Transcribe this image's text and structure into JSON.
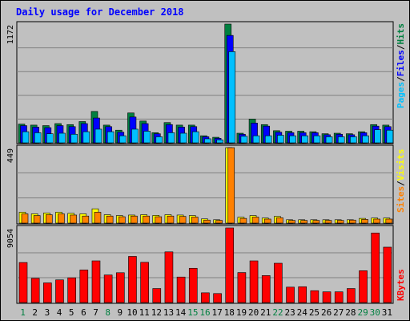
{
  "chart_data": {
    "type": "bar",
    "title": "Daily usage for December 2018",
    "categories": [
      "1",
      "2",
      "3",
      "4",
      "5",
      "6",
      "7",
      "8",
      "9",
      "10",
      "11",
      "12",
      "13",
      "14",
      "15",
      "16",
      "17",
      "18",
      "19",
      "20",
      "21",
      "22",
      "23",
      "24",
      "25",
      "26",
      "27",
      "28",
      "29",
      "30",
      "31"
    ],
    "weekend_categories": [
      "1",
      "8",
      "15",
      "16",
      "22",
      "29",
      "30"
    ],
    "panels": [
      {
        "name": "hits-files-pages",
        "ymax_label": "1172",
        "ylim": [
          0,
          1172
        ],
        "series": [
          {
            "name": "Hits",
            "color": "#008040",
            "values": [
              185,
              175,
              170,
              190,
              180,
              210,
              310,
              175,
              125,
              295,
              215,
              100,
              200,
              175,
              175,
              70,
              55,
              1172,
              95,
              235,
              180,
              120,
              115,
              115,
              110,
              90,
              95,
              90,
              110,
              180,
              175
            ]
          },
          {
            "name": "Files",
            "color": "#0000ff",
            "values": [
              170,
              155,
              150,
              170,
              160,
              190,
              245,
              160,
              105,
              255,
              190,
              90,
              180,
              155,
              160,
              60,
              45,
              1060,
              85,
              195,
              165,
              105,
              100,
              100,
              100,
              80,
              85,
              80,
              100,
              165,
              160
            ]
          },
          {
            "name": "Pages",
            "color": "#00c0ff",
            "values": [
              110,
              100,
              90,
              95,
              85,
              110,
              135,
              110,
              70,
              135,
              115,
              60,
              100,
              95,
              110,
              40,
              30,
              900,
              65,
              70,
              70,
              75,
              70,
              70,
              70,
              60,
              60,
              60,
              70,
              130,
              125
            ]
          }
        ]
      },
      {
        "name": "visits-sites",
        "ymax_label": "449",
        "ylim": [
          0,
          449
        ],
        "series": [
          {
            "name": "Visits",
            "color": "#ffff00",
            "values": [
              65,
              55,
              60,
              65,
              58,
              55,
              85,
              50,
              45,
              48,
              50,
              46,
              50,
              48,
              45,
              25,
              20,
              449,
              35,
              45,
              30,
              40,
              20,
              20,
              20,
              20,
              20,
              20,
              28,
              30,
              30
            ]
          },
          {
            "name": "Sites",
            "color": "#ff8000",
            "values": [
              55,
              45,
              50,
              55,
              48,
              42,
              65,
              42,
              38,
              42,
              42,
              38,
              42,
              40,
              36,
              18,
              16,
              449,
              28,
              36,
              24,
              32,
              16,
              16,
              16,
              16,
              16,
              18,
              22,
              24,
              24
            ]
          }
        ]
      },
      {
        "name": "kbytes",
        "ymax_label": "9054",
        "ylim": [
          0,
          9054
        ],
        "series": [
          {
            "name": "KBytes",
            "color": "#ff0000",
            "values": [
              4860,
              2935,
              2385,
              2750,
              3000,
              3950,
              5060,
              3345,
              3620,
              5600,
              4880,
              1700,
              6150,
              3095,
              4160,
              1180,
              1090,
              9054,
              3640,
              5060,
              3270,
              4770,
              1870,
              1920,
              1440,
              1300,
              1300,
              1700,
              3860,
              8440,
              6720
            ]
          }
        ]
      }
    ],
    "right_labels": [
      {
        "panel": 0,
        "parts": [
          {
            "text": "Pages",
            "color": "#00c0ff"
          },
          {
            "text": "/",
            "color": "#000000"
          },
          {
            "text": "Files",
            "color": "#0000ff"
          },
          {
            "text": "/",
            "color": "#000000"
          },
          {
            "text": "Hits",
            "color": "#008040"
          }
        ]
      },
      {
        "panel": 1,
        "parts": [
          {
            "text": "Sites",
            "color": "#ff8000"
          },
          {
            "text": "/",
            "color": "#000000"
          },
          {
            "text": "Visits",
            "color": "#ffff00"
          }
        ]
      },
      {
        "panel": 2,
        "parts": [
          {
            "text": "KBytes",
            "color": "#ff0000"
          }
        ]
      }
    ],
    "colors": {
      "title": "#0000ff",
      "weekday_label": "#000000",
      "weekend_label": "#008040",
      "plot_bg": "#c0c0c0",
      "frame_bg": "#c0c0c0"
    },
    "legend": "right"
  }
}
